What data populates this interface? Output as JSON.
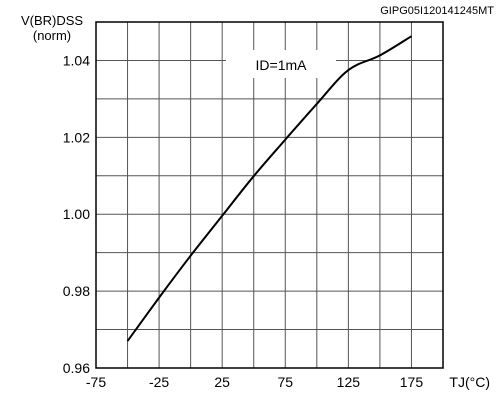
{
  "figure_id": "GIPG05I120141245MT",
  "chart_data": {
    "type": "line",
    "ylabel_main": "V(BR)DSS",
    "ylabel_unit": "(norm)",
    "xlabel": "TJ(°C)",
    "annotation": "ID=1mA",
    "xlim": [
      -75,
      200
    ],
    "ylim": [
      0.96,
      1.05
    ],
    "x_ticks": [
      "-75",
      "-25",
      "25",
      "75",
      "125",
      "175"
    ],
    "y_ticks": [
      "0.96",
      "0.98",
      "1.00",
      "1.02",
      "1.04"
    ],
    "grid": true,
    "series": [
      {
        "x": [
          -50,
          -25,
          0,
          25,
          50,
          75,
          100,
          125,
          150,
          175
        ],
        "y": [
          0.967,
          0.9783,
          0.9892,
          0.9996,
          1.0099,
          1.0194,
          1.0287,
          1.0375,
          1.0413,
          1.0463
        ]
      }
    ]
  }
}
